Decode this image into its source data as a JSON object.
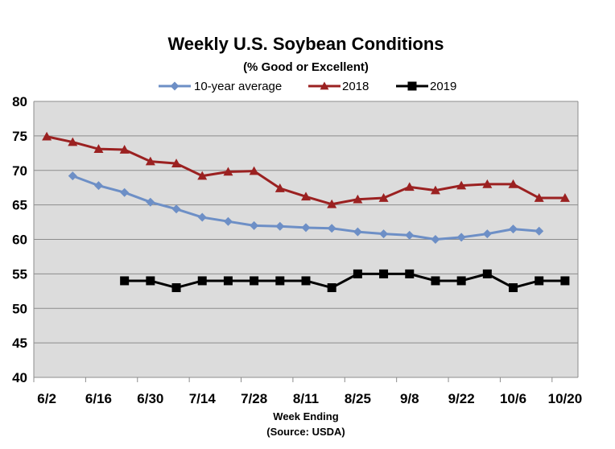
{
  "chart_data": {
    "type": "line",
    "title": "Weekly U.S. Soybean Conditions",
    "subtitle": "(% Good or Excellent)",
    "xlabel": "Week Ending",
    "xlabel_note": "(Source: USDA)",
    "ylabel": "",
    "ylim": [
      40,
      80
    ],
    "yticks": [
      40,
      45,
      50,
      55,
      60,
      65,
      70,
      75,
      80
    ],
    "x": [
      "6/2",
      "6/9",
      "6/16",
      "6/23",
      "6/30",
      "7/7",
      "7/14",
      "7/21",
      "7/28",
      "8/4",
      "8/11",
      "8/18",
      "8/25",
      "9/1",
      "9/8",
      "9/15",
      "9/22",
      "9/29",
      "10/6",
      "10/13",
      "10/20"
    ],
    "xtick_labels": [
      "6/2",
      "6/16",
      "6/30",
      "7/14",
      "7/28",
      "8/11",
      "8/25",
      "9/8",
      "9/22",
      "10/6",
      "10/20"
    ],
    "grid": true,
    "legend_position": "top",
    "series": [
      {
        "name": "10-year average",
        "color": "#6d8fc6",
        "marker": "diamond",
        "values": [
          null,
          69.2,
          67.8,
          66.8,
          65.4,
          64.4,
          63.2,
          62.6,
          62.0,
          61.9,
          61.7,
          61.6,
          61.1,
          60.8,
          60.6,
          60.0,
          60.3,
          60.8,
          61.5,
          61.2,
          null
        ]
      },
      {
        "name": "2018",
        "color": "#9b2121",
        "marker": "triangle",
        "values": [
          74.9,
          74.1,
          73.1,
          73.0,
          71.3,
          71.0,
          69.2,
          69.8,
          69.9,
          67.4,
          66.2,
          65.1,
          65.8,
          66.0,
          67.6,
          67.1,
          67.8,
          68.0,
          68.0,
          66.0,
          66.0
        ]
      },
      {
        "name": "2019",
        "color": "#000000",
        "marker": "square",
        "values": [
          null,
          null,
          null,
          54,
          54,
          53,
          54,
          54,
          54,
          54,
          54,
          53,
          55,
          55,
          55,
          54,
          54,
          55,
          53,
          54,
          54
        ]
      }
    ]
  }
}
